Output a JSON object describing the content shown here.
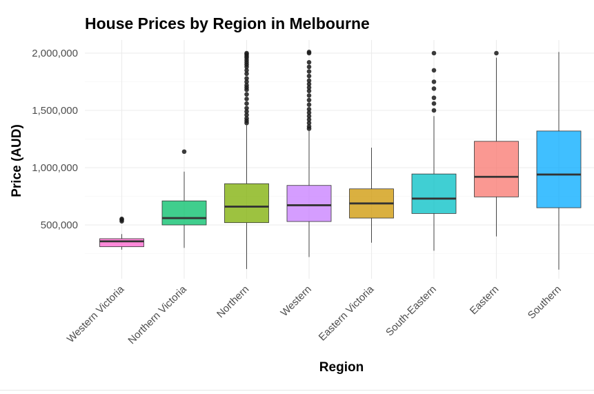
{
  "chart_data": {
    "type": "boxplot",
    "title": "House Prices by Region in Melbourne",
    "xlabel": "Region",
    "ylabel": "Price (AUD)",
    "ylim": [
      130000,
      2100000
    ],
    "yticks": [
      500000,
      1000000,
      1500000,
      2000000
    ],
    "ytick_labels": [
      "500,000",
      "1,000,000",
      "1,500,000",
      "2,000,000"
    ],
    "grid": true,
    "legend": "none",
    "categories": [
      "Western Victoria",
      "Northern Victoria",
      "Northern",
      "Western",
      "Eastern Victoria",
      "South-Eastern",
      "Eastern",
      "Southern"
    ],
    "boxes": [
      {
        "category": "Western Victoria",
        "min": 285000,
        "q1": 310000,
        "median": 357000,
        "q3": 380000,
        "max": 420000,
        "outliers": [
          532000,
          545000,
          553000
        ],
        "color": "#FF61CC"
      },
      {
        "category": "Northern Victoria",
        "min": 300000,
        "q1": 500000,
        "median": 560000,
        "q3": 710000,
        "max": 965000,
        "outliers": [
          1140000
        ],
        "color": "#00BE67"
      },
      {
        "category": "Northern",
        "min": 115000,
        "q1": 520000,
        "median": 660000,
        "q3": 860000,
        "max": 1370000,
        "outliers": [
          1390000,
          1410000,
          1430000,
          1460000,
          1490000,
          1520000,
          1560000,
          1600000,
          1640000,
          1680000,
          1700000,
          1720000,
          1750000,
          1780000,
          1820000,
          1850000,
          1880000,
          1900000,
          1920000,
          1940000,
          1960000,
          1975000,
          1990000,
          2000000
        ],
        "color": "#7CAE00"
      },
      {
        "category": "Western",
        "min": 220000,
        "q1": 530000,
        "median": 672000,
        "q3": 845000,
        "max": 1320000,
        "outliers": [
          1340000,
          1360000,
          1390000,
          1420000,
          1450000,
          1480000,
          1510000,
          1550000,
          1590000,
          1630000,
          1670000,
          1700000,
          1730000,
          1760000,
          1800000,
          1840000,
          1880000,
          1920000,
          2000000,
          2010000
        ],
        "color": "#C77CFF"
      },
      {
        "category": "Eastern Victoria",
        "min": 345000,
        "q1": 560000,
        "median": 688000,
        "q3": 815000,
        "max": 1175000,
        "outliers": [],
        "color": "#CD9600"
      },
      {
        "category": "South-Eastern",
        "min": 275000,
        "q1": 600000,
        "median": 730000,
        "q3": 945000,
        "max": 1450000,
        "outliers": [
          1500000,
          1560000,
          1610000,
          1690000,
          1750000,
          1850000,
          2000000
        ],
        "color": "#00BFC4"
      },
      {
        "category": "Eastern",
        "min": 400000,
        "q1": 745000,
        "median": 920000,
        "q3": 1230000,
        "max": 1960000,
        "outliers": [
          2000000
        ],
        "color": "#F8766D"
      },
      {
        "category": "Southern",
        "min": 110000,
        "q1": 650000,
        "median": 940000,
        "q3": 1320000,
        "max": 2010000,
        "outliers": [],
        "color": "#00A9FF"
      }
    ]
  }
}
